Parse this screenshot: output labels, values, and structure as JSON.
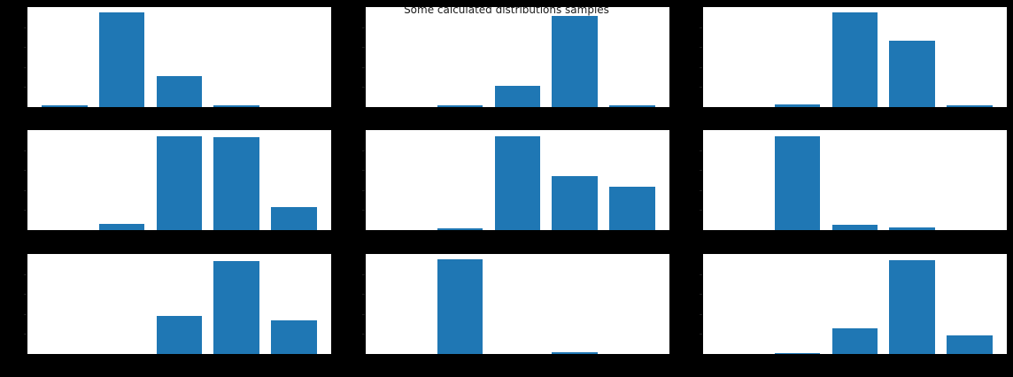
{
  "title": "Some calculated distributions samples",
  "colors": {
    "background": "#000000",
    "axes_face": "#ffffff",
    "bar": "#1f77b4",
    "title_text": "#1a1a1a"
  },
  "chart_info": {
    "figure_title": "Some calculated distributions samples",
    "grid": "3x3 subplots",
    "chart_type": "bar",
    "bars_per_subplot": 5,
    "axis_labels": "none visible",
    "tick_labels": "none visible (small unlabeled y-tick marks on left spines)",
    "legend": "none",
    "y_value_scale": "values are approximate bar heights as a fraction of each subplot's y-axis height"
  },
  "chart_data": [
    {
      "type": "bar",
      "row": 0,
      "col": 0,
      "values": [
        0.02,
        0.95,
        0.31,
        0.02,
        0
      ]
    },
    {
      "type": "bar",
      "row": 0,
      "col": 1,
      "values": [
        0,
        0.02,
        0.21,
        0.91,
        0.02
      ]
    },
    {
      "type": "bar",
      "row": 0,
      "col": 2,
      "values": [
        0,
        0.03,
        0.95,
        0.66,
        0.02
      ]
    },
    {
      "type": "bar",
      "row": 1,
      "col": 0,
      "values": [
        0,
        0.06,
        0.94,
        0.93,
        0.23
      ]
    },
    {
      "type": "bar",
      "row": 1,
      "col": 1,
      "values": [
        0,
        0.02,
        0.94,
        0.54,
        0.43
      ]
    },
    {
      "type": "bar",
      "row": 1,
      "col": 2,
      "values": [
        0,
        0.94,
        0.05,
        0.03,
        0
      ]
    },
    {
      "type": "bar",
      "row": 2,
      "col": 0,
      "values": [
        0,
        0,
        0.38,
        0.93,
        0.34
      ]
    },
    {
      "type": "bar",
      "row": 2,
      "col": 1,
      "values": [
        0,
        0.95,
        0,
        0.02,
        0
      ]
    },
    {
      "type": "bar",
      "row": 2,
      "col": 2,
      "values": [
        0,
        0.01,
        0.26,
        0.94,
        0.19
      ]
    }
  ]
}
